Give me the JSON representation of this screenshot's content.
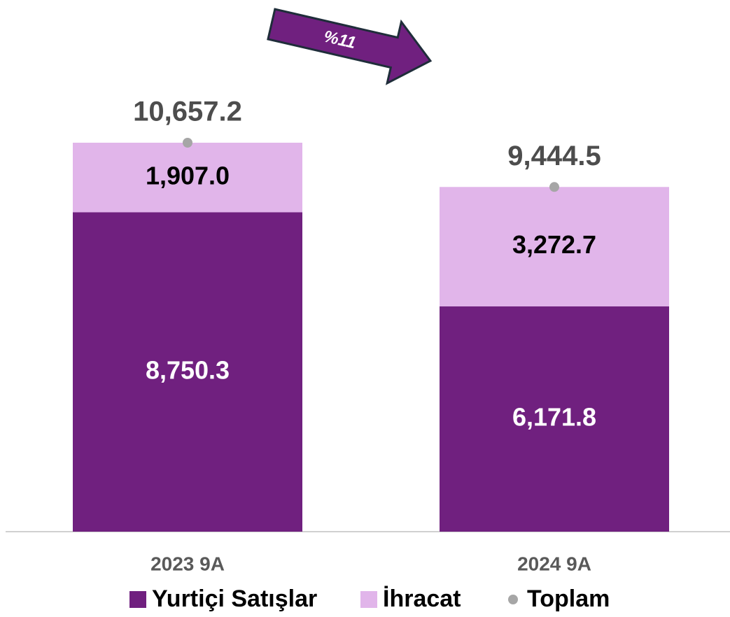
{
  "chart_data": {
    "type": "stacked-bar",
    "categories": [
      "2023 9A",
      "2024 9A"
    ],
    "series": [
      {
        "name": "Yurtiçi Satışlar",
        "color": "#70207f",
        "values": [
          8750.3,
          6171.8
        ],
        "value_labels": [
          "8,750.3",
          "6,171.8"
        ]
      },
      {
        "name": "İhracat",
        "color": "#e1b5ea",
        "values": [
          1907.0,
          3272.7
        ],
        "value_labels": [
          "1,907.0",
          "3,272.7"
        ]
      },
      {
        "name": "Toplam",
        "color": "#a6a6a6",
        "values": [
          10657.2,
          9444.5
        ],
        "value_labels": [
          "10,657.2",
          "9,444.5"
        ]
      }
    ],
    "annotation": "%11"
  }
}
